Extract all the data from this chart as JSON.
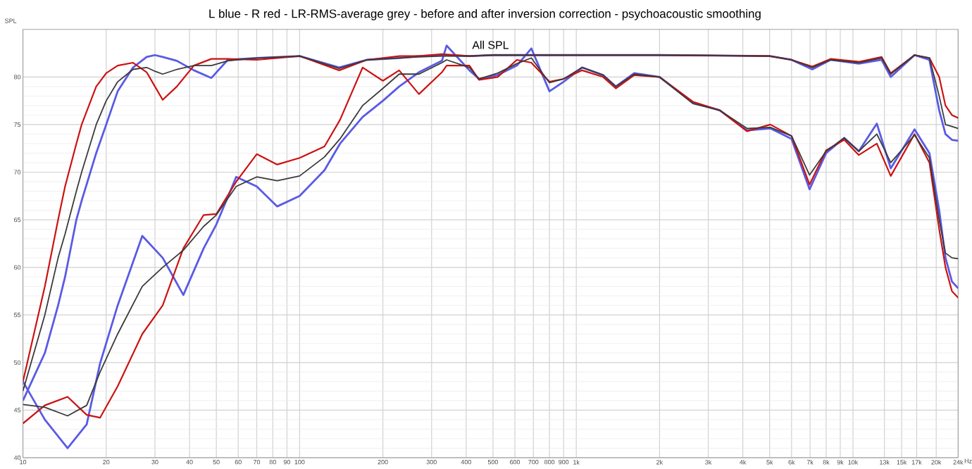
{
  "chart_data": {
    "type": "line",
    "title": "L blue - R red - LR-RMS-average grey - before and after inversion correction - psychoacoustic smoothing",
    "ylabel": "SPL",
    "annotations": [
      "All SPL"
    ],
    "log": "x",
    "grid": true,
    "line_style": "solid",
    "xlim": [
      10,
      24000
    ],
    "ylim": [
      40,
      85
    ],
    "xticks": [
      10,
      20,
      30,
      40,
      50,
      60,
      70,
      80,
      90,
      100,
      200,
      300,
      400,
      500,
      600,
      700,
      800,
      900,
      {
        "value": 1000,
        "label": "1k"
      },
      {
        "value": 2000,
        "label": "2k"
      },
      {
        "value": 3000,
        "label": "3k"
      },
      {
        "value": 4000,
        "label": "4k"
      },
      {
        "value": 5000,
        "label": "5k"
      },
      {
        "value": 6000,
        "label": "6k"
      },
      {
        "value": 7000,
        "label": "7k"
      },
      {
        "value": 8000,
        "label": "8k"
      },
      {
        "value": 9000,
        "label": "9k"
      },
      {
        "value": 10000,
        "label": "10k"
      },
      {
        "value": 13000,
        "label": "13k"
      },
      {
        "value": 15000,
        "label": "15k"
      },
      {
        "value": 17000,
        "label": "17k"
      },
      {
        "value": 20000,
        "label": "20k"
      },
      {
        "value": 24000,
        "label": "24k"
      }
    ],
    "xlabel": "Hz",
    "yticks": [
      40,
      45,
      50,
      55,
      60,
      65,
      70,
      75,
      80
    ],
    "series": [
      {
        "color": "#5a5ae6",
        "x": [
          10,
          12,
          14.5,
          17,
          19,
          22,
          27,
          32,
          38,
          45,
          50,
          59,
          70,
          83,
          100,
          123,
          140,
          169,
          200,
          229,
          270,
          327,
          340,
          411,
          445,
          520,
          610,
          688,
          800,
          900,
          1050,
          1250,
          1390,
          1620,
          2000,
          2640,
          3300,
          4140,
          5030,
          6000,
          6970,
          8000,
          9300,
          10500,
          12200,
          13700,
          16700,
          18900,
          20500,
          21600,
          22800,
          24000
        ],
        "values": [
          48,
          44,
          41,
          43.5,
          49.9,
          56,
          63.3,
          61,
          57.1,
          62,
          64.5,
          69.5,
          68.5,
          66.4,
          67.5,
          70.2,
          73,
          75.8,
          77.5,
          79.0,
          80.5,
          81.7,
          83.3,
          80.7,
          79.8,
          80.2,
          81.2,
          83.0,
          78.5,
          79.5,
          81.0,
          80.2,
          79.0,
          80.4,
          80.0,
          77.3,
          76.5,
          74.4,
          74.6,
          73.5,
          68.2,
          72.0,
          73.6,
          72.2,
          75.1,
          70.4,
          74.5,
          72,
          66,
          61,
          58.5,
          57.8
        ]
      },
      {
        "color": "#cc1111",
        "x": [
          10,
          12,
          14.5,
          17,
          19,
          22,
          27,
          32,
          38,
          45,
          50,
          59,
          70,
          83,
          100,
          123,
          140,
          169,
          200,
          229,
          270,
          327,
          340,
          411,
          445,
          520,
          610,
          688,
          800,
          900,
          1050,
          1250,
          1390,
          1620,
          2000,
          2640,
          3300,
          4140,
          5030,
          6000,
          6970,
          8000,
          9300,
          10500,
          12200,
          13700,
          16700,
          18900,
          20500,
          21600,
          22800,
          24000
        ],
        "values": [
          43.6,
          45.5,
          46.4,
          44.5,
          44.2,
          47.5,
          53,
          56,
          62,
          65.5,
          65.6,
          69,
          71.9,
          70.8,
          71.5,
          72.7,
          75.5,
          81.0,
          79.6,
          80.7,
          78.2,
          80.5,
          81.2,
          81.2,
          79.7,
          80.0,
          81.8,
          81.5,
          79.5,
          79.8,
          80.7,
          80.0,
          78.8,
          80.2,
          80.0,
          77.4,
          76.5,
          74.3,
          75.0,
          73.8,
          68.7,
          72.3,
          73.4,
          71.8,
          73.0,
          69.6,
          74.0,
          71,
          64,
          60,
          57.5,
          56.8
        ]
      },
      {
        "color": "#3a3a3a",
        "x": [
          10,
          12,
          14.5,
          17,
          19,
          22,
          27,
          32,
          38,
          45,
          50,
          59,
          70,
          83,
          100,
          123,
          140,
          169,
          200,
          229,
          270,
          327,
          340,
          411,
          445,
          520,
          610,
          688,
          800,
          900,
          1050,
          1250,
          1390,
          1620,
          2000,
          2640,
          3300,
          4140,
          5030,
          6000,
          6970,
          8000,
          9300,
          10500,
          12200,
          13700,
          16700,
          18900,
          20500,
          21600,
          22800,
          24000
        ],
        "values": [
          45.6,
          45.3,
          44.4,
          45.5,
          49,
          53,
          58,
          60,
          61.8,
          64.3,
          65.5,
          68.5,
          69.5,
          69.1,
          69.6,
          71.6,
          73.5,
          77,
          78.8,
          80.3,
          80.3,
          81.5,
          81.8,
          81.0,
          79.8,
          80.4,
          81.4,
          82.0,
          79.4,
          79.8,
          81.0,
          80.2,
          79.0,
          80.3,
          80.0,
          77.2,
          76.5,
          74.6,
          74.7,
          73.8,
          69.7,
          72.2,
          73.6,
          72.2,
          74.0,
          71.0,
          73.9,
          71.5,
          65,
          61.5,
          61.0,
          60.9
        ]
      },
      {
        "color": "#5a5ae6",
        "x": [
          10,
          12,
          13.4,
          14.2,
          15.6,
          16.3,
          18.4,
          20,
          22,
          25,
          28,
          30,
          32,
          36,
          41.5,
          48,
          55,
          70,
          100,
          139,
          175,
          230,
          270,
          327,
          411,
          500,
          700,
          1000,
          2000,
          5000,
          6000,
          7130,
          8300,
          10500,
          12700,
          13700,
          16700,
          18900,
          20500,
          21600,
          22800,
          24000
        ],
        "values": [
          46,
          51,
          56,
          59,
          65,
          67,
          72,
          75,
          78.5,
          81,
          82.1,
          82.3,
          82.1,
          81.7,
          80.7,
          79.9,
          81.8,
          82,
          82.2,
          81.0,
          81.8,
          82,
          82.2,
          82.3,
          82.2,
          82.3,
          82.3,
          82.3,
          82.3,
          82.2,
          81.8,
          80.8,
          81.8,
          81.4,
          81.8,
          80.0,
          82.3,
          81.8,
          76.5,
          74,
          73.4,
          73.3
        ]
      },
      {
        "color": "#cc1111",
        "x": [
          10,
          12,
          13.4,
          14.2,
          15.6,
          16.3,
          18.4,
          20,
          22,
          25,
          28,
          30,
          32,
          36,
          41.5,
          48,
          55,
          70,
          100,
          139,
          175,
          230,
          270,
          327,
          411,
          500,
          700,
          1000,
          2000,
          5000,
          6000,
          7130,
          8300,
          10500,
          12700,
          13700,
          16700,
          18900,
          20500,
          21600,
          22800,
          24000
        ],
        "values": [
          48,
          58,
          65,
          68.5,
          73,
          75,
          79,
          80.4,
          81.2,
          81.5,
          80.5,
          79,
          77.6,
          79,
          81.2,
          81.9,
          81.9,
          81.8,
          82.2,
          80.7,
          81.8,
          82.2,
          82.2,
          82.4,
          82.2,
          82.3,
          82.3,
          82.3,
          82.3,
          82.2,
          81.8,
          81.1,
          81.9,
          81.6,
          82.1,
          80.4,
          82.3,
          82,
          80,
          77,
          76,
          75.7
        ]
      },
      {
        "color": "#3a3a3a",
        "x": [
          10,
          12,
          13.4,
          14.2,
          15.6,
          16.3,
          18.4,
          20,
          22,
          25,
          28,
          30,
          32,
          36,
          41.5,
          48,
          55,
          70,
          100,
          139,
          175,
          230,
          270,
          327,
          411,
          500,
          700,
          1000,
          2000,
          5000,
          6000,
          7130,
          8300,
          10500,
          12700,
          13700,
          16700,
          18900,
          20500,
          21600,
          22800,
          24000
        ],
        "values": [
          47,
          55,
          61,
          63.5,
          68,
          70,
          75,
          77.5,
          79.5,
          80.8,
          81,
          80.6,
          80.3,
          80.8,
          81.2,
          81.2,
          81.7,
          82,
          82.2,
          80.9,
          81.8,
          82,
          82.1,
          82.2,
          82.2,
          82.3,
          82.3,
          82.3,
          82.3,
          82.2,
          81.8,
          81.0,
          81.8,
          81.5,
          82.0,
          80.3,
          82.3,
          82,
          78,
          75,
          74.8,
          74.6
        ]
      }
    ]
  }
}
